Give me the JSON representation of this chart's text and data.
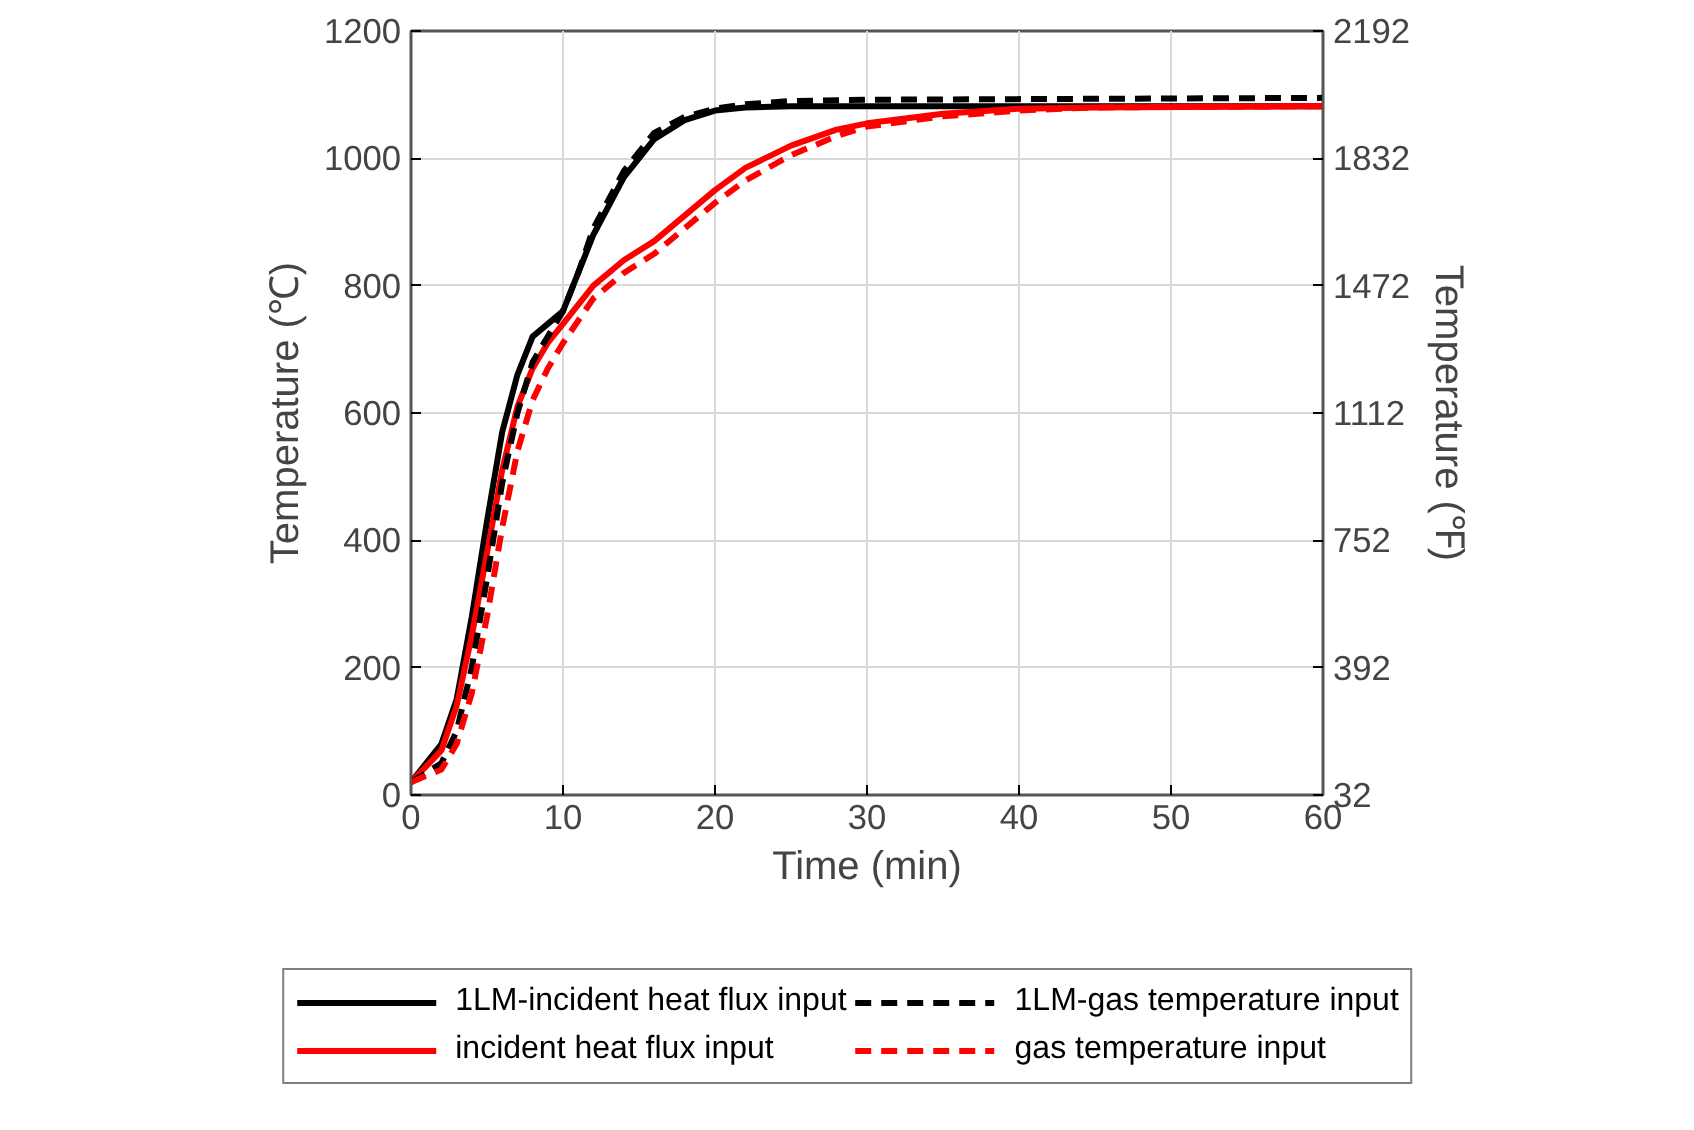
{
  "chart_data": {
    "type": "line",
    "xlabel": "Time (min)",
    "ylabel": "Temperature (℃)",
    "y2label": "Temperature (℉)",
    "xlim": [
      0,
      60
    ],
    "xticks": [
      0,
      10,
      20,
      30,
      40,
      50,
      60
    ],
    "ylim": [
      0,
      1200
    ],
    "yticks": [
      0,
      200,
      400,
      600,
      800,
      1000,
      1200
    ],
    "y2lim": [
      32,
      2192
    ],
    "y2ticks": [
      32,
      392,
      752,
      1112,
      1472,
      1832,
      2192
    ],
    "grid": true,
    "legend": "bottom",
    "marker": "none",
    "series": [
      {
        "name": "1LM-incident heat flux input",
        "color": "#000000",
        "line_style": "solid",
        "x": [
          0,
          2,
          3,
          4,
          5,
          6,
          7,
          8,
          9,
          10,
          11,
          12,
          14,
          16,
          18,
          20,
          22,
          25,
          30,
          60
        ],
        "values": [
          20,
          80,
          150,
          280,
          430,
          570,
          660,
          720,
          740,
          760,
          820,
          880,
          970,
          1030,
          1060,
          1075,
          1080,
          1082,
          1082,
          1082
        ]
      },
      {
        "name": "incident heat flux input",
        "color": "#ff0000",
        "line_style": "solid",
        "x": [
          0,
          2,
          3,
          4,
          5,
          6,
          7,
          8,
          9,
          10,
          12,
          14,
          16,
          18,
          20,
          22,
          25,
          28,
          30,
          35,
          40,
          45,
          60
        ],
        "values": [
          20,
          70,
          140,
          250,
          380,
          510,
          610,
          670,
          710,
          740,
          800,
          840,
          870,
          910,
          950,
          985,
          1020,
          1045,
          1055,
          1070,
          1078,
          1080,
          1082
        ]
      },
      {
        "name": "1LM-gas temperature input",
        "color": "#000000",
        "line_style": "dashed",
        "x": [
          0,
          2,
          3,
          4,
          5,
          6,
          7,
          8,
          9,
          10,
          11,
          12,
          14,
          16,
          18,
          20,
          22,
          25,
          30,
          60
        ],
        "values": [
          20,
          50,
          100,
          200,
          340,
          490,
          600,
          680,
          720,
          760,
          820,
          890,
          980,
          1040,
          1065,
          1078,
          1085,
          1090,
          1092,
          1095
        ]
      },
      {
        "name": "gas temperature input",
        "color": "#ff0000",
        "line_style": "dashed",
        "x": [
          0,
          2,
          3,
          4,
          5,
          6,
          7,
          8,
          9,
          10,
          12,
          14,
          16,
          18,
          20,
          22,
          25,
          28,
          30,
          35,
          40,
          45,
          60
        ],
        "values": [
          20,
          40,
          80,
          160,
          280,
          420,
          540,
          620,
          670,
          710,
          780,
          820,
          850,
          890,
          930,
          965,
          1005,
          1035,
          1050,
          1066,
          1075,
          1080,
          1082
        ]
      }
    ]
  }
}
